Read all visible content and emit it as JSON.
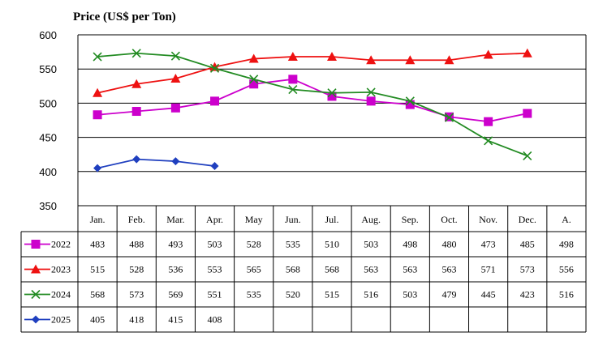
{
  "chart_data": {
    "type": "line",
    "title": "Price (US$ per Ton)",
    "ylim": [
      350,
      600
    ],
    "yticks": [
      350,
      400,
      450,
      500,
      550,
      600
    ],
    "grid": true,
    "legend_placement": "data-table-left",
    "categories": [
      "Jan.",
      "Feb.",
      "Mar.",
      "Apr.",
      "May",
      "Jun.",
      "Jul.",
      "Aug.",
      "Sep.",
      "Oct.",
      "Nov.",
      "Dec.",
      "A."
    ],
    "series": [
      {
        "name": "2022",
        "color": "#cc00cc",
        "marker": "square",
        "values": [
          483,
          488,
          493,
          503,
          528,
          535,
          510,
          503,
          498,
          480,
          473,
          485,
          498
        ]
      },
      {
        "name": "2023",
        "color": "#ee1111",
        "marker": "triangle",
        "values": [
          515,
          528,
          536,
          553,
          565,
          568,
          568,
          563,
          563,
          563,
          571,
          573,
          556
        ]
      },
      {
        "name": "2024",
        "color": "#228b22",
        "marker": "x",
        "values": [
          568,
          573,
          569,
          551,
          535,
          520,
          515,
          516,
          503,
          479,
          445,
          423,
          516
        ]
      },
      {
        "name": "2025",
        "color": "#1f3fbf",
        "marker": "diamond",
        "values": [
          405,
          418,
          415,
          408,
          null,
          null,
          null,
          null,
          null,
          null,
          null,
          null,
          null
        ]
      }
    ],
    "plotted_points": 12
  }
}
